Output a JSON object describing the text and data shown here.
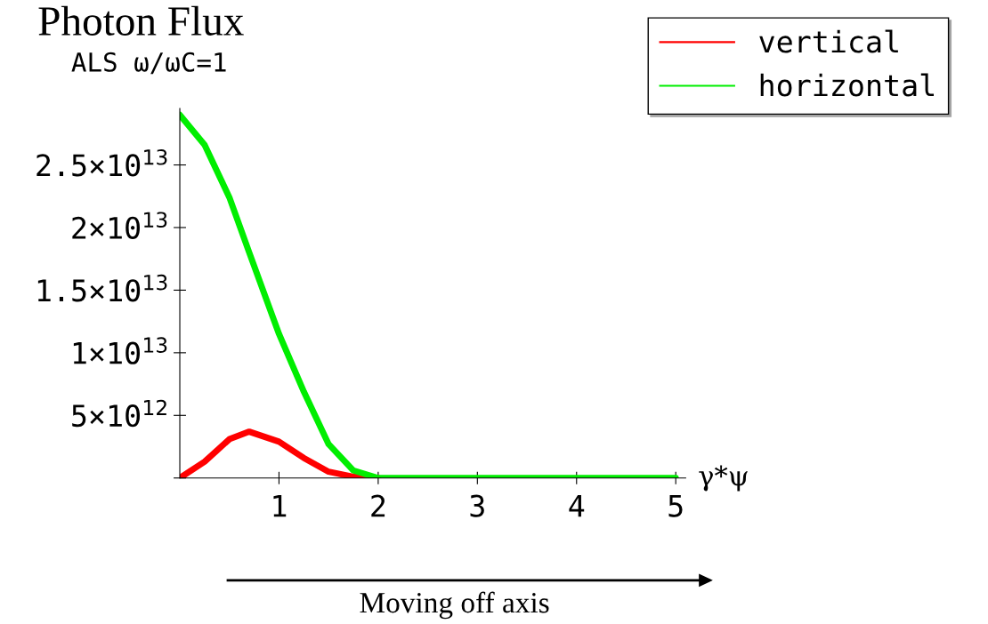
{
  "chart_data": {
    "type": "line",
    "title": "Photon Flux",
    "subtitle": "ALS ω/ωC=1",
    "xlabel": "γ*ψ",
    "annotations": [
      "Moving off axis"
    ],
    "x": [
      0,
      0.25,
      0.5,
      0.7,
      1.0,
      1.25,
      1.5,
      1.75,
      2,
      3,
      4,
      5
    ],
    "series": [
      {
        "name": "vertical",
        "color": "#ff0000",
        "values": [
          0,
          1300000000000.0,
          3100000000000.0,
          3700000000000.0,
          2900000000000.0,
          1600000000000.0,
          500000000000.0,
          100000000000.0,
          0,
          null,
          null,
          null
        ]
      },
      {
        "name": "horizontal",
        "color": "#00ee00",
        "values": [
          29000000000000.0,
          26600000000000.0,
          22400000000000.0,
          18000000000000.0,
          11500000000000.0,
          6900000000000.0,
          2700000000000.0,
          600000000000.0,
          0,
          0,
          0,
          0
        ]
      }
    ],
    "xlim": [
      0,
      5.1
    ],
    "ylim": [
      0,
      29500000000000.0
    ],
    "xticks": [
      1,
      2,
      3,
      4,
      5
    ],
    "yticks": [
      {
        "value": 0,
        "label": null
      },
      {
        "value": 5000000000000.0,
        "label": "5×10$^{12}$"
      },
      {
        "value": 10000000000000.0,
        "label": "1×10$^{13}$"
      },
      {
        "value": 15000000000000.0,
        "label": "1.5×10$^{13}$"
      },
      {
        "value": 20000000000000.0,
        "label": "2×10$^{13}$"
      },
      {
        "value": 25000000000000.0,
        "label": "2.5×10$^{13}$"
      }
    ],
    "legend": "top right",
    "grid": false
  }
}
